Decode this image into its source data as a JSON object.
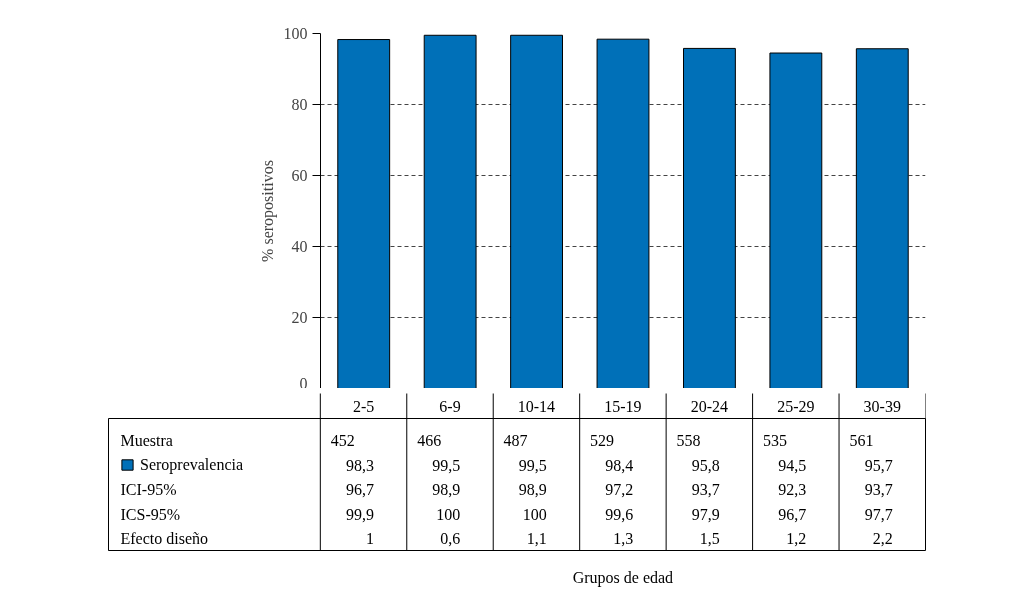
{
  "chart_data": {
    "type": "bar",
    "categories": [
      "2-5",
      "6-9",
      "10-14",
      "15-19",
      "20-24",
      "25-29",
      "30-39"
    ],
    "series": [
      {
        "name": "Seroprevalencia",
        "color": "#0070b8",
        "values": [
          98.3,
          99.5,
          99.5,
          98.4,
          95.8,
          94.5,
          95.7
        ],
        "value_labels": [
          "98,3",
          "99,5",
          "99,5",
          "98,4",
          "95,8",
          "94,5",
          "95,7"
        ]
      }
    ],
    "ylabel": "% seropositivos",
    "ylim": [
      0,
      100
    ],
    "yticks": [
      0,
      20,
      40,
      60,
      80,
      100
    ],
    "grid": "y",
    "legend": "bottom left",
    "annotations": [
      "Muestra",
      "452",
      "466",
      "487",
      "529",
      "558",
      "535",
      "561",
      "ICI-95%",
      "96,7",
      "98,9",
      "98,9",
      "97,2",
      "93,7",
      "92,3",
      "93,7",
      "ICS-95%",
      "99,9",
      "100",
      "100",
      "99,6",
      "97,9",
      "96,7",
      "97,7",
      "Efecto diseño",
      "1",
      "0,6",
      "1,1",
      "1,3",
      "1,5",
      "1,2",
      "2,2",
      "Grupos de edad"
    ]
  }
}
